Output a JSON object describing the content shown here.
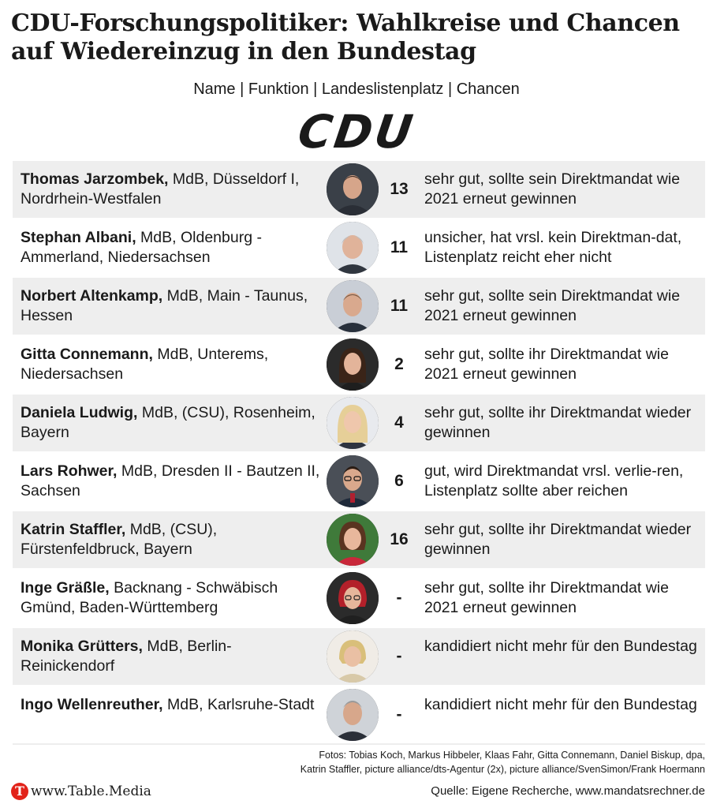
{
  "title": "CDU-Forschungspolitiker: Wahlkreise und Chancen auf Wiedereinzug in den Bundestag",
  "subtitle": "Name | Funktion | Landeslistenplatz | Chancen",
  "logo_text": "CDU",
  "rows": [
    {
      "name": "Thomas Jarzombek,",
      "detail": " MdB, Düsseldorf I, Nordrhein-Westfalen",
      "rank": "13",
      "chance": "sehr gut, sollte sein Direktmandat wie 2021 erneut gewinnen"
    },
    {
      "name": "Stephan Albani,",
      "detail": " MdB, Oldenburg - Ammerland, Niedersachsen",
      "rank": "11",
      "chance": "unsicher, hat vrsl. kein Direktman-dat, Listenplatz reicht eher nicht"
    },
    {
      "name": "Norbert Altenkamp,",
      "detail": " MdB, Main - Taunus, Hessen",
      "rank": "11",
      "chance": "sehr gut, sollte sein Direktmandat wie 2021 erneut gewinnen"
    },
    {
      "name": "Gitta Connemann,",
      "detail": " MdB, Unterems, Niedersachsen",
      "rank": "2",
      "chance": "sehr gut, sollte ihr Direktmandat wie 2021 erneut gewinnen"
    },
    {
      "name": "Daniela Ludwig,",
      "detail": " MdB, (CSU), Rosenheim, Bayern",
      "rank": "4",
      "chance": "sehr gut, sollte ihr Direktmandat wieder gewinnen"
    },
    {
      "name": "Lars Rohwer,",
      "detail": " MdB, Dresden II - Bautzen II, Sachsen",
      "rank": "6",
      "chance": "gut, wird Direktmandat vrsl. verlie-ren, Listenplatz sollte aber reichen"
    },
    {
      "name": "Katrin Staffler,",
      "detail": " MdB, (CSU), Fürstenfeldbruck, Bayern",
      "rank": "16",
      "chance": "sehr gut, sollte ihr Direktmandat wieder gewinnen"
    },
    {
      "name": "Inge Gräßle,",
      "detail": " Backnang - Schwäbisch Gmünd, Baden-Württemberg",
      "rank": "-",
      "chance": "sehr gut, sollte ihr Direktmandat wie 2021 erneut gewinnen"
    },
    {
      "name": "Monika Grütters,",
      "detail": " MdB, Berlin-Reinickendorf",
      "rank": "-",
      "chance": "kandidiert nicht mehr für den Bundestag"
    },
    {
      "name": "Ingo Wellenreuther,",
      "detail": " MdB, Karlsruhe-Stadt",
      "rank": "-",
      "chance": "kandidiert nicht mehr für den Bundestag"
    }
  ],
  "credits_line1": "Fotos: Tobias Koch, Markus Hibbeler, Klaas Fahr, Gitta Connemann, Daniel Biskup, dpa,",
  "credits_line2": "Katrin Staffler, picture alliance/dts-Agentur (2x), picture alliance/SvenSimon/Frank Hoermann",
  "brand_icon": "table-media-logo-icon",
  "brand_letter": "T",
  "brand_text": "www.Table.Media",
  "source": "Quelle: Eigene Recherche, www.mandatsrechner.de",
  "colors": {
    "brand_red": "#e2231a",
    "row_shade": "#eeeeee",
    "text": "#1a1a1a"
  }
}
